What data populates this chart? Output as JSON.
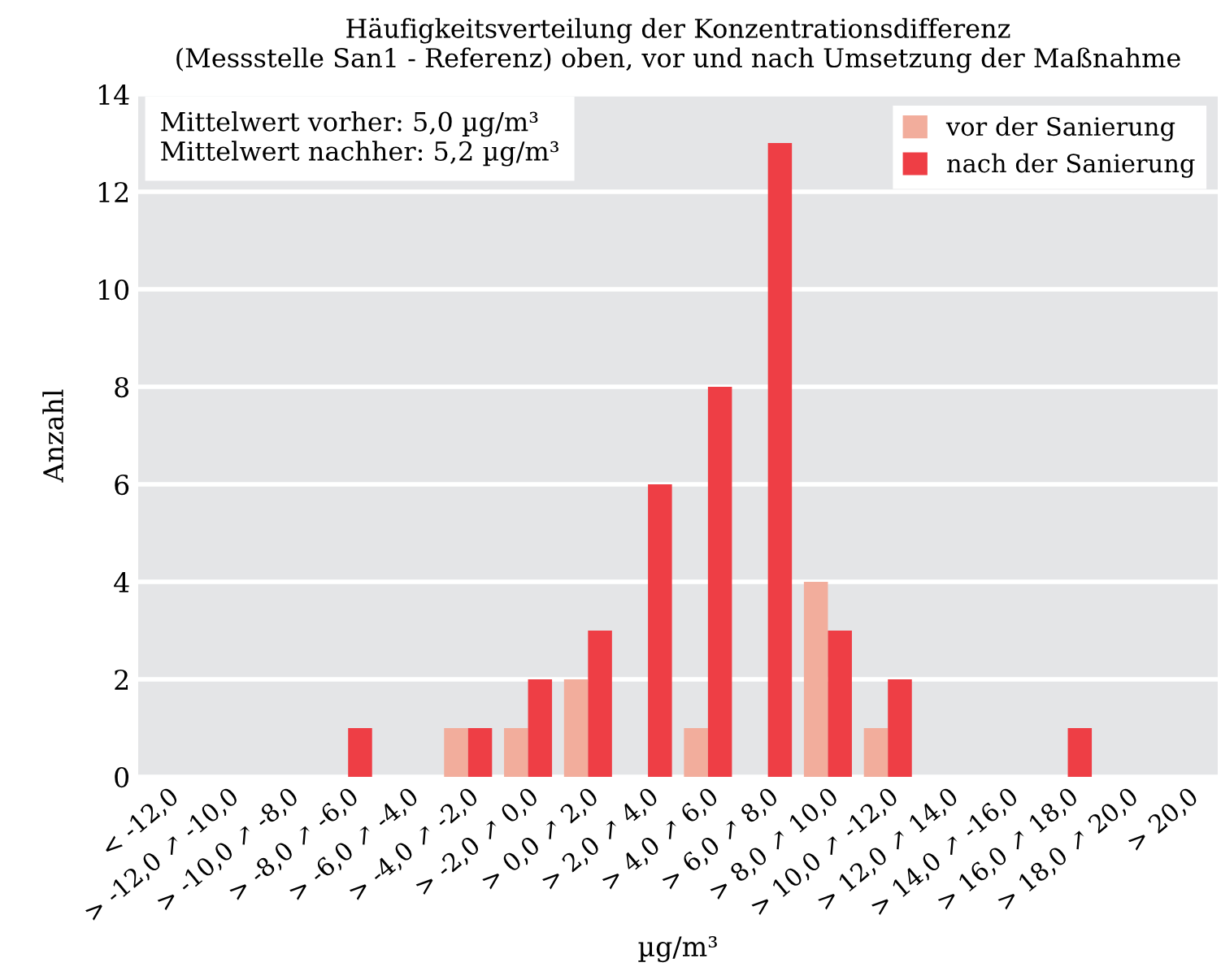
{
  "chart_data": {
    "type": "bar",
    "title": "Häufigkeitsverteilung der Konzentrationsdifferenz\n(Messstelle San1 - Referenz) oben, vor und nach Umsetzung der Maßnahme",
    "xlabel": "µg/m³",
    "ylabel": "Anzahl",
    "categories": [
      "< -12,0",
      "> -12,0 ↗ -10,0",
      "> -10,0 ↗ -8,0",
      "> -8,0 ↗ -6,0",
      "> -6,0 ↗ -4,0",
      "> -4,0 ↗ -2,0",
      "> -2,0 ↗ 0,0",
      "> 0,0 ↗ 2,0",
      "> 2,0 ↗ 4,0",
      "> 4,0 ↗ 6,0",
      "> 6,0 ↗ 8,0",
      "> 8,0 ↗ 10,0",
      "> 10,0 ↗ -12,0",
      "> 12,0 ↗ 14,0",
      "> 14,0 ↗ -16,0",
      "> 16,0 ↗ 18,0",
      "> 18,0 ↗ 20,0",
      "> 20,0"
    ],
    "series": [
      {
        "name": "vor der Sanierung",
        "color": "#f2ad9c",
        "values": [
          0,
          0,
          0,
          0,
          0,
          1,
          1,
          2,
          0,
          1,
          0,
          4,
          1,
          0,
          0,
          0,
          0,
          0
        ]
      },
      {
        "name": "nach der Sanierung",
        "color": "#ee3e45",
        "values": [
          0,
          0,
          0,
          1,
          0,
          1,
          2,
          3,
          6,
          8,
          13,
          3,
          2,
          0,
          0,
          1,
          0,
          0
        ]
      }
    ],
    "ylim": [
      0,
      14
    ],
    "yticks": [
      0,
      2,
      4,
      6,
      8,
      10,
      12,
      14
    ],
    "grid": "y",
    "legend": "top right",
    "annotations": [
      "Mittelwert vorher: 5,0 µg/m³\nMittelwert nachher: 5,2 µg/m³"
    ]
  }
}
